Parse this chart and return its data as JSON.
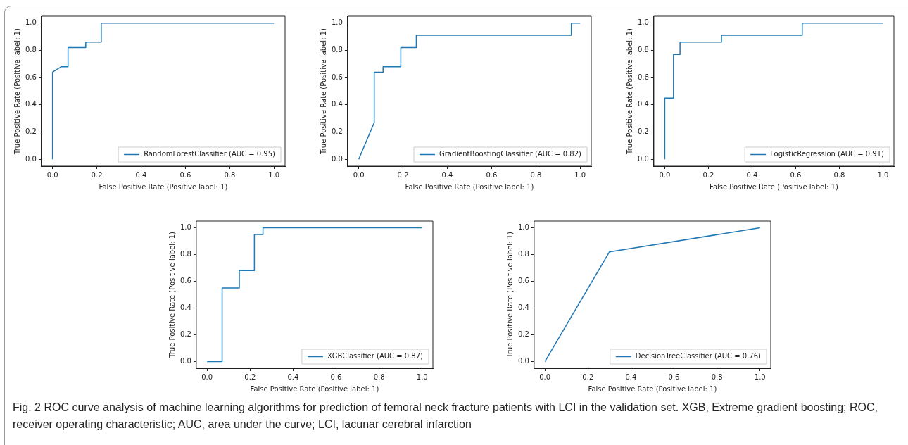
{
  "chart_data": [
    {
      "type": "line",
      "xlabel": "False Positive Rate (Positive label: 1)",
      "ylabel": "True Positive Rate (Positive label: 1)",
      "xlim": [
        -0.05,
        1.05
      ],
      "ylim": [
        -0.05,
        1.05
      ],
      "xticks": [
        {
          "value": 0,
          "label": "0.0"
        },
        {
          "value": 0.2,
          "label": "0.2"
        },
        {
          "value": 0.4,
          "label": "0.4"
        },
        {
          "value": 0.6,
          "label": "0.6"
        },
        {
          "value": 0.8,
          "label": "0.8"
        },
        {
          "value": 1,
          "label": "1.0"
        }
      ],
      "yticks": [
        {
          "value": 0,
          "label": "0.0"
        },
        {
          "value": 0.2,
          "label": "0.2"
        },
        {
          "value": 0.4,
          "label": "0.4"
        },
        {
          "value": 0.6,
          "label": "0.6"
        },
        {
          "value": 0.8,
          "label": "0.8"
        },
        {
          "value": 1,
          "label": "1.0"
        }
      ],
      "legend": "bottom right",
      "marker": "none",
      "annotations": [
        "Fig. 2  ROC curve analysis of machine learning algorithms for prediction of femoral neck fracture patients with LCI in the validation set. XGB, Extreme gradient boosting; ROC, receiver operating characteristic; AUC, area under the curve; LCI, lacunar cerebral infarction"
      ],
      "series": [
        {
          "name": "RandomForestClassifier (AUC = 0.95)",
          "color": "#1f77b4",
          "x": [
            0,
            0,
            0.04,
            0.07,
            0.07,
            0.15,
            0.15,
            0.22,
            0.22,
            1
          ],
          "values": [
            0,
            0.64,
            0.68,
            0.68,
            0.82,
            0.82,
            0.86,
            0.86,
            1,
            1
          ]
        }
      ]
    },
    {
      "type": "line",
      "xlabel": "False Positive Rate (Positive label: 1)",
      "ylabel": "True Positive Rate (Positive label: 1)",
      "xlim": [
        -0.05,
        1.05
      ],
      "ylim": [
        -0.05,
        1.05
      ],
      "xticks": [
        {
          "value": 0,
          "label": "0.0"
        },
        {
          "value": 0.2,
          "label": "0.2"
        },
        {
          "value": 0.4,
          "label": "0.4"
        },
        {
          "value": 0.6,
          "label": "0.6"
        },
        {
          "value": 0.8,
          "label": "0.8"
        },
        {
          "value": 1,
          "label": "1.0"
        }
      ],
      "yticks": [
        {
          "value": 0,
          "label": "0.0"
        },
        {
          "value": 0.2,
          "label": "0.2"
        },
        {
          "value": 0.4,
          "label": "0.4"
        },
        {
          "value": 0.6,
          "label": "0.6"
        },
        {
          "value": 0.8,
          "label": "0.8"
        },
        {
          "value": 1,
          "label": "1.0"
        }
      ],
      "legend": "bottom right",
      "marker": "none",
      "series": [
        {
          "name": "GradientBoostingClassifier (AUC = 0.82)",
          "color": "#1f77b4",
          "x": [
            0,
            0.07,
            0.07,
            0.11,
            0.11,
            0.19,
            0.19,
            0.26,
            0.26,
            0.96,
            0.96,
            1
          ],
          "values": [
            0,
            0.27,
            0.64,
            0.64,
            0.68,
            0.68,
            0.82,
            0.82,
            0.91,
            0.91,
            1,
            1
          ]
        }
      ]
    },
    {
      "type": "line",
      "xlabel": "False Positive Rate (Positive label: 1)",
      "ylabel": "True Positive Rate (Positive label: 1)",
      "xlim": [
        -0.05,
        1.05
      ],
      "ylim": [
        -0.05,
        1.05
      ],
      "xticks": [
        {
          "value": 0,
          "label": "0.0"
        },
        {
          "value": 0.2,
          "label": "0.2"
        },
        {
          "value": 0.4,
          "label": "0.4"
        },
        {
          "value": 0.6,
          "label": "0.6"
        },
        {
          "value": 0.8,
          "label": "0.8"
        },
        {
          "value": 1,
          "label": "1.0"
        }
      ],
      "yticks": [
        {
          "value": 0,
          "label": "0.0"
        },
        {
          "value": 0.2,
          "label": "0.2"
        },
        {
          "value": 0.4,
          "label": "0.4"
        },
        {
          "value": 0.6,
          "label": "0.6"
        },
        {
          "value": 0.8,
          "label": "0.8"
        },
        {
          "value": 1,
          "label": "1.0"
        }
      ],
      "legend": "bottom right",
      "marker": "none",
      "series": [
        {
          "name": "LogisticRegression (AUC = 0.91)",
          "color": "#1f77b4",
          "x": [
            0,
            0,
            0.04,
            0.04,
            0.07,
            0.07,
            0.26,
            0.26,
            0.63,
            0.63,
            1
          ],
          "values": [
            0,
            0.45,
            0.45,
            0.77,
            0.77,
            0.86,
            0.86,
            0.91,
            0.91,
            1,
            1
          ]
        }
      ]
    },
    {
      "type": "line",
      "xlabel": "False Positive Rate (Positive label: 1)",
      "ylabel": "True Positive Rate (Positive label: 1)",
      "xlim": [
        -0.05,
        1.05
      ],
      "ylim": [
        -0.05,
        1.05
      ],
      "xticks": [
        {
          "value": 0,
          "label": "0.0"
        },
        {
          "value": 0.2,
          "label": "0.2"
        },
        {
          "value": 0.4,
          "label": "0.4"
        },
        {
          "value": 0.6,
          "label": "0.6"
        },
        {
          "value": 0.8,
          "label": "0.8"
        },
        {
          "value": 1,
          "label": "1.0"
        }
      ],
      "yticks": [
        {
          "value": 0,
          "label": "0.0"
        },
        {
          "value": 0.2,
          "label": "0.2"
        },
        {
          "value": 0.4,
          "label": "0.4"
        },
        {
          "value": 0.6,
          "label": "0.6"
        },
        {
          "value": 0.8,
          "label": "0.8"
        },
        {
          "value": 1,
          "label": "1.0"
        }
      ],
      "legend": "bottom right",
      "marker": "none",
      "series": [
        {
          "name": "XGBClassifier (AUC = 0.87)",
          "color": "#1f77b4",
          "x": [
            0,
            0.07,
            0.07,
            0.15,
            0.15,
            0.22,
            0.22,
            0.26,
            0.26,
            1
          ],
          "values": [
            0,
            0,
            0.55,
            0.55,
            0.68,
            0.68,
            0.95,
            0.95,
            1,
            1
          ]
        }
      ]
    },
    {
      "type": "line",
      "xlabel": "False Positive Rate (Positive label: 1)",
      "ylabel": "True Positive Rate (Positive label: 1)",
      "xlim": [
        -0.05,
        1.05
      ],
      "ylim": [
        -0.05,
        1.05
      ],
      "xticks": [
        {
          "value": 0,
          "label": "0.0"
        },
        {
          "value": 0.2,
          "label": "0.2"
        },
        {
          "value": 0.4,
          "label": "0.4"
        },
        {
          "value": 0.6,
          "label": "0.6"
        },
        {
          "value": 0.8,
          "label": "0.8"
        },
        {
          "value": 1,
          "label": "1.0"
        }
      ],
      "yticks": [
        {
          "value": 0,
          "label": "0.0"
        },
        {
          "value": 0.2,
          "label": "0.2"
        },
        {
          "value": 0.4,
          "label": "0.4"
        },
        {
          "value": 0.6,
          "label": "0.6"
        },
        {
          "value": 0.8,
          "label": "0.8"
        },
        {
          "value": 1,
          "label": "1.0"
        }
      ],
      "legend": "bottom right",
      "marker": "none",
      "series": [
        {
          "name": "DecisionTreeClassifier (AUC = 0.76)",
          "color": "#1f77b4",
          "x": [
            0,
            0.3,
            1
          ],
          "values": [
            0,
            0.82,
            1
          ]
        }
      ]
    }
  ]
}
